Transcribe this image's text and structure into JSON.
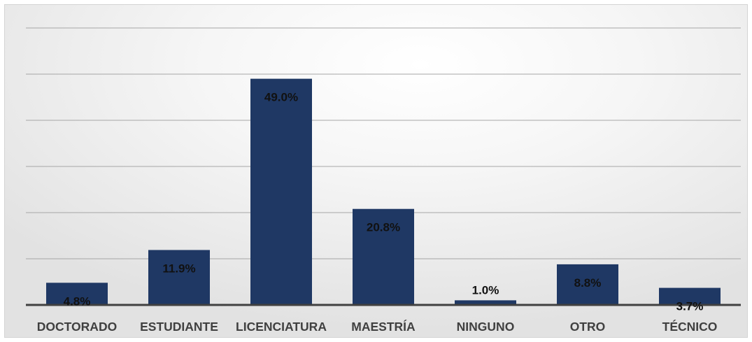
{
  "chart_data": {
    "type": "bar",
    "categories": [
      "DOCTORADO",
      "ESTUDIANTE",
      "LICENCIATURA",
      "MAESTRÍA",
      "NINGUNO",
      "OTRO",
      "TÉCNICO"
    ],
    "values": [
      4.8,
      11.9,
      49.0,
      20.8,
      1.0,
      8.8,
      3.7
    ],
    "data_labels": [
      "4.8%",
      "11.9%",
      "49.0%",
      "20.8%",
      "1.0%",
      "8.8%",
      "3.7%"
    ],
    "ylim": [
      0,
      60
    ],
    "gridlines": [
      10,
      20,
      30,
      40,
      50,
      60
    ],
    "grid": true,
    "legend": "none",
    "title": "",
    "xlabel": "",
    "ylabel": "",
    "colors": {
      "bar": "#1f3864",
      "gridline": "#a6a6a6",
      "axis": "#404040",
      "tick_text": "#404040",
      "label_text": "#111111"
    }
  }
}
